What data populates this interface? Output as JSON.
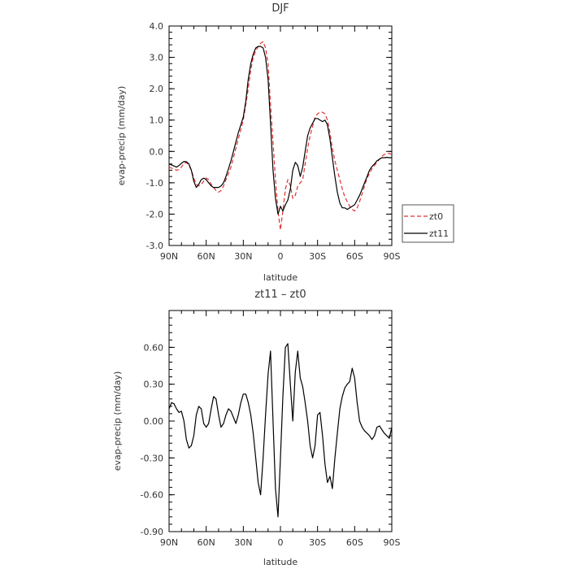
{
  "chart_data": [
    {
      "type": "line",
      "title": "DJF",
      "xlabel": "latitude",
      "ylabel": "evap-precip (mm/day)",
      "xlim": [
        90,
        -90
      ],
      "ylim": [
        -3.0,
        4.0
      ],
      "x_ticks": [
        90,
        60,
        30,
        0,
        -30,
        -60,
        -90
      ],
      "x_tick_labels": [
        "90N",
        "60N",
        "30N",
        "0",
        "30S",
        "60S",
        "90S"
      ],
      "y_ticks": [
        -3.0,
        -2.0,
        -1.0,
        0.0,
        1.0,
        2.0,
        3.0,
        4.0
      ],
      "y_tick_labels": [
        "-3.0",
        "-2.0",
        "-1.0",
        "0.0",
        "1.0",
        "2.0",
        "3.0",
        "4.0"
      ],
      "legend": "right",
      "series": [
        {
          "name": "zt0",
          "color": "#e03030",
          "dash": "dashed",
          "x": [
            90,
            87,
            84,
            82,
            80,
            78,
            76,
            74,
            72,
            70,
            68,
            66,
            64,
            62,
            60,
            58,
            56,
            54,
            52,
            50,
            48,
            46,
            44,
            42,
            40,
            38,
            36,
            34,
            32,
            30,
            28,
            26,
            24,
            22,
            20,
            18,
            16,
            14,
            12,
            10,
            8,
            6,
            4,
            2,
            0,
            -2,
            -4,
            -6,
            -8,
            -10,
            -12,
            -14,
            -16,
            -18,
            -20,
            -22,
            -24,
            -26,
            -28,
            -30,
            -32,
            -34,
            -36,
            -38,
            -40,
            -42,
            -44,
            -46,
            -48,
            -50,
            -52,
            -54,
            -56,
            -58,
            -60,
            -62,
            -64,
            -66,
            -68,
            -70,
            -72,
            -74,
            -76,
            -78,
            -80,
            -82,
            -84,
            -86,
            -88,
            -90
          ],
          "y": [
            -0.5,
            -0.55,
            -0.6,
            -0.58,
            -0.5,
            -0.38,
            -0.35,
            -0.45,
            -0.6,
            -0.85,
            -1.05,
            -1.1,
            -1.05,
            -0.95,
            -0.85,
            -0.9,
            -1.05,
            -1.15,
            -1.25,
            -1.3,
            -1.25,
            -1.1,
            -0.9,
            -0.7,
            -0.5,
            -0.2,
            0.1,
            0.4,
            0.7,
            1.0,
            1.5,
            2.0,
            2.6,
            3.0,
            3.2,
            3.35,
            3.45,
            3.5,
            3.3,
            2.8,
            1.5,
            0.3,
            -0.9,
            -1.9,
            -2.5,
            -1.9,
            -1.2,
            -0.9,
            -1.1,
            -1.5,
            -1.4,
            -1.1,
            -1.0,
            -0.9,
            -0.4,
            0.1,
            0.5,
            0.8,
            1.1,
            1.2,
            1.25,
            1.25,
            1.2,
            1.0,
            0.6,
            0.1,
            -0.3,
            -0.6,
            -0.9,
            -1.2,
            -1.45,
            -1.6,
            -1.75,
            -1.85,
            -1.9,
            -1.8,
            -1.6,
            -1.35,
            -1.1,
            -0.85,
            -0.7,
            -0.55,
            -0.45,
            -0.35,
            -0.25,
            -0.15,
            -0.1,
            -0.08,
            -0.06,
            -0.1
          ]
        },
        {
          "name": "zt11",
          "color": "#000000",
          "dash": "solid",
          "x": [
            90,
            87,
            84,
            82,
            80,
            78,
            76,
            74,
            72,
            70,
            68,
            66,
            64,
            62,
            60,
            58,
            56,
            54,
            52,
            50,
            48,
            46,
            44,
            42,
            40,
            38,
            36,
            34,
            32,
            30,
            28,
            26,
            24,
            22,
            20,
            18,
            16,
            14,
            12,
            10,
            8,
            6,
            4,
            2,
            0,
            -2,
            -4,
            -6,
            -8,
            -10,
            -12,
            -14,
            -16,
            -18,
            -20,
            -22,
            -24,
            -26,
            -28,
            -30,
            -32,
            -34,
            -36,
            -38,
            -40,
            -42,
            -44,
            -46,
            -48,
            -50,
            -52,
            -54,
            -56,
            -58,
            -60,
            -62,
            -64,
            -66,
            -68,
            -70,
            -72,
            -74,
            -76,
            -78,
            -80,
            -82,
            -84,
            -86,
            -88,
            -90
          ],
          "y": [
            -0.4,
            -0.45,
            -0.5,
            -0.45,
            -0.38,
            -0.32,
            -0.33,
            -0.4,
            -0.6,
            -0.95,
            -1.15,
            -1.05,
            -0.9,
            -0.85,
            -0.9,
            -1.0,
            -1.1,
            -1.15,
            -1.15,
            -1.15,
            -1.1,
            -1.0,
            -0.8,
            -0.55,
            -0.3,
            0.0,
            0.3,
            0.6,
            0.85,
            1.1,
            1.6,
            2.3,
            2.8,
            3.1,
            3.3,
            3.35,
            3.35,
            3.3,
            3.0,
            2.3,
            0.9,
            -0.6,
            -1.5,
            -2.0,
            -1.75,
            -1.9,
            -1.7,
            -1.55,
            -1.2,
            -0.6,
            -0.35,
            -0.45,
            -0.8,
            -0.5,
            0.0,
            0.5,
            0.75,
            0.9,
            1.05,
            1.05,
            1.0,
            0.95,
            1.0,
            0.85,
            0.4,
            -0.2,
            -0.8,
            -1.3,
            -1.65,
            -1.8,
            -1.8,
            -1.85,
            -1.8,
            -1.75,
            -1.7,
            -1.55,
            -1.4,
            -1.2,
            -1.0,
            -0.8,
            -0.6,
            -0.48,
            -0.4,
            -0.3,
            -0.25,
            -0.2,
            -0.2,
            -0.19,
            -0.2,
            -0.2
          ]
        }
      ]
    },
    {
      "type": "line",
      "title": "zt11 – zt0",
      "xlabel": "latitude",
      "ylabel": "evap-precip (mm/day)",
      "xlim": [
        90,
        -90
      ],
      "ylim": [
        -0.9,
        0.9
      ],
      "x_ticks": [
        90,
        60,
        30,
        0,
        -30,
        -60,
        -90
      ],
      "x_tick_labels": [
        "90N",
        "60N",
        "30N",
        "0",
        "30S",
        "60S",
        "90S"
      ],
      "y_ticks": [
        -0.9,
        -0.6,
        -0.3,
        0.0,
        0.3,
        0.6
      ],
      "y_tick_labels": [
        "-0.90",
        "-0.60",
        "-0.30",
        "0.00",
        "0.30",
        "0.60"
      ],
      "series": [
        {
          "color": "#000000",
          "dash": "solid",
          "x": [
            90,
            88,
            86,
            84,
            82,
            80,
            78,
            76,
            74,
            72,
            70,
            68,
            66,
            64,
            62,
            60,
            58,
            56,
            54,
            52,
            50,
            48,
            46,
            44,
            42,
            40,
            38,
            36,
            34,
            32,
            30,
            28,
            26,
            24,
            22,
            20,
            18,
            16,
            14,
            12,
            10,
            8,
            6,
            4,
            2,
            0,
            -2,
            -4,
            -6,
            -8,
            -10,
            -12,
            -14,
            -16,
            -18,
            -20,
            -22,
            -24,
            -26,
            -28,
            -30,
            -32,
            -34,
            -36,
            -38,
            -40,
            -42,
            -44,
            -46,
            -48,
            -50,
            -52,
            -54,
            -56,
            -58,
            -60,
            -62,
            -64,
            -66,
            -68,
            -70,
            -72,
            -74,
            -76,
            -78,
            -80,
            -82,
            -84,
            -86,
            -88,
            -90
          ],
          "y": [
            0.1,
            0.15,
            0.14,
            0.1,
            0.07,
            0.08,
            0.0,
            -0.15,
            -0.22,
            -0.2,
            -0.12,
            0.05,
            0.12,
            0.1,
            -0.02,
            -0.05,
            -0.02,
            0.1,
            0.2,
            0.18,
            0.05,
            -0.05,
            -0.02,
            0.05,
            0.1,
            0.08,
            0.03,
            -0.02,
            0.05,
            0.15,
            0.22,
            0.22,
            0.15,
            0.05,
            -0.1,
            -0.3,
            -0.5,
            -0.6,
            -0.3,
            0.05,
            0.38,
            0.57,
            0.0,
            -0.55,
            -0.78,
            -0.3,
            0.2,
            0.6,
            0.63,
            0.3,
            0.0,
            0.4,
            0.57,
            0.35,
            0.28,
            0.15,
            0.0,
            -0.2,
            -0.3,
            -0.2,
            0.05,
            0.07,
            -0.12,
            -0.35,
            -0.5,
            -0.45,
            -0.55,
            -0.3,
            -0.1,
            0.1,
            0.2,
            0.27,
            0.3,
            0.32,
            0.43,
            0.35,
            0.15,
            0.0,
            -0.05,
            -0.08,
            -0.1,
            -0.12,
            -0.15,
            -0.12,
            -0.05,
            -0.04,
            -0.07,
            -0.1,
            -0.12,
            -0.14,
            -0.05
          ]
        }
      ]
    }
  ]
}
